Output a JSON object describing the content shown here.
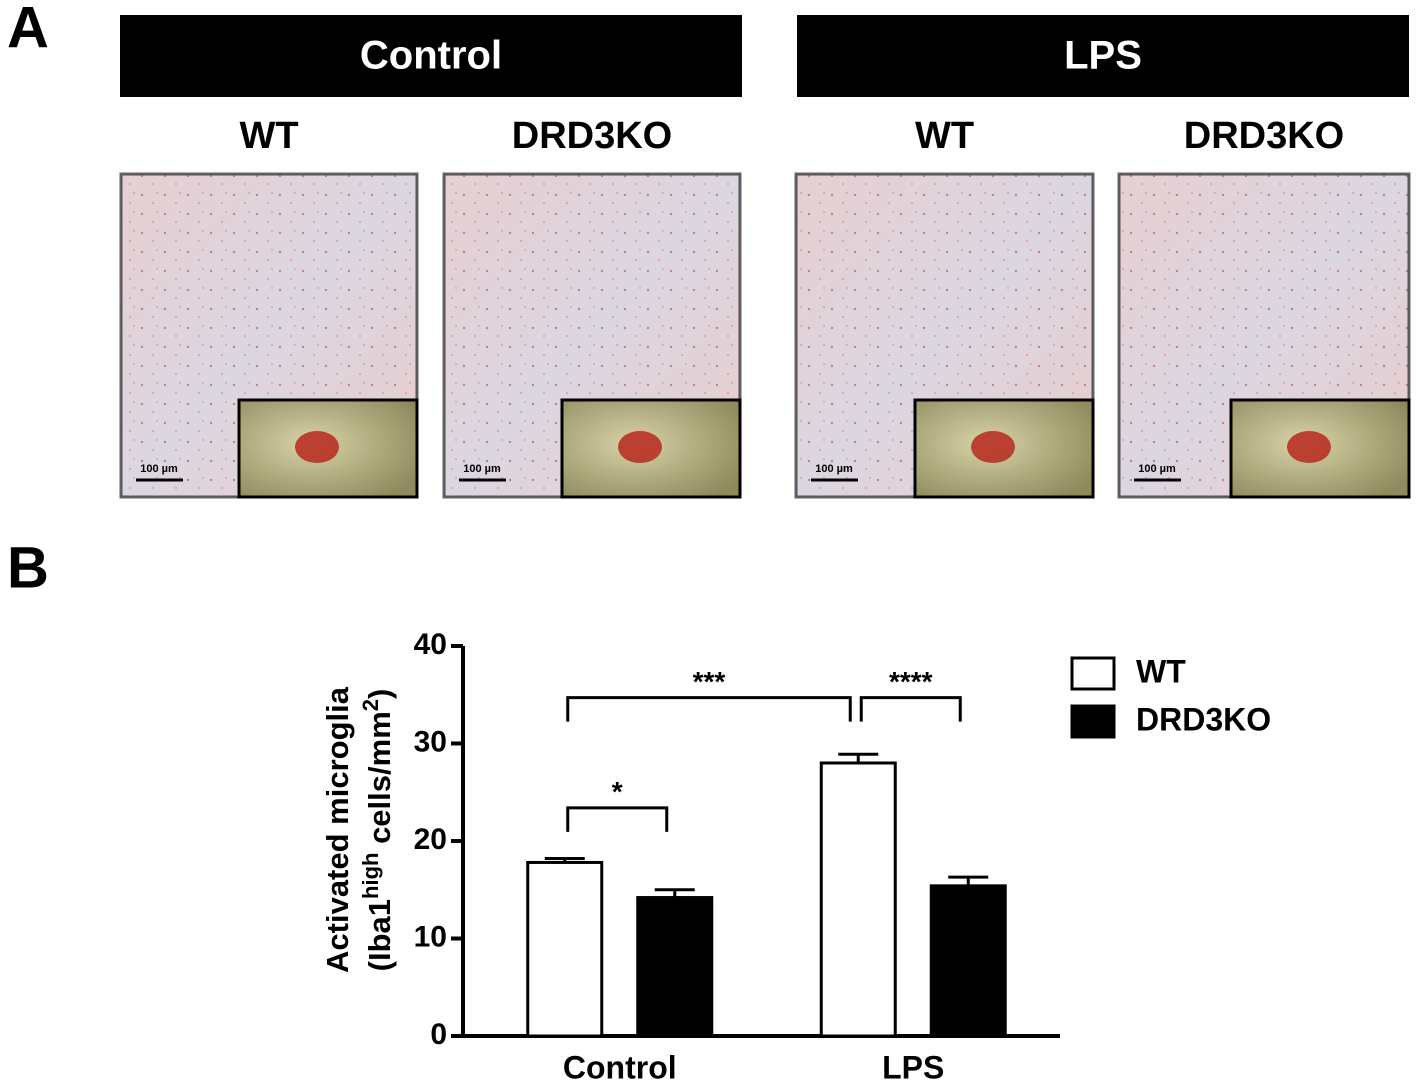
{
  "panel_a": {
    "label": "A",
    "groups": [
      {
        "title": "Control",
        "images": [
          {
            "label": "WT",
            "scale_bar": "100 µm"
          },
          {
            "label": "DRD3KO",
            "scale_bar": "100 µm"
          }
        ]
      },
      {
        "title": "LPS",
        "images": [
          {
            "label": "WT",
            "scale_bar": "100 µm"
          },
          {
            "label": "DRD3KO",
            "scale_bar": "100 µm"
          }
        ]
      }
    ]
  },
  "panel_b_label": "B",
  "chart_data": {
    "type": "bar",
    "y_label": "Activated microglia",
    "y_label_2": [
      "(Iba1",
      "high",
      " cells/mm",
      "2",
      ")"
    ],
    "categories": [
      "Control",
      "LPS"
    ],
    "series": [
      {
        "name": "WT",
        "color": "#ffffff",
        "values": [
          17.8,
          28.0
        ],
        "errors": [
          0.4,
          0.9
        ]
      },
      {
        "name": "DRD3KO",
        "color": "#000000",
        "values": [
          14.2,
          15.4
        ],
        "errors": [
          0.8,
          0.9
        ]
      }
    ],
    "ylim": [
      0,
      40
    ],
    "yticks": [
      0,
      10,
      20,
      30,
      40
    ],
    "legend": "upper right",
    "annotations": [
      {
        "text": "*",
        "y": 23.4,
        "from": {
          "series": 0,
          "category": 0
        },
        "to": {
          "series": 1,
          "category": 0
        }
      },
      {
        "text": "***",
        "y": 34.7,
        "from": {
          "series": 0,
          "category": 0
        },
        "to": {
          "series": 0,
          "category": 1
        }
      },
      {
        "text": "****",
        "y": 34.7,
        "from": {
          "series": 0,
          "category": 1
        },
        "to": {
          "series": 1,
          "category": 1
        }
      }
    ]
  }
}
